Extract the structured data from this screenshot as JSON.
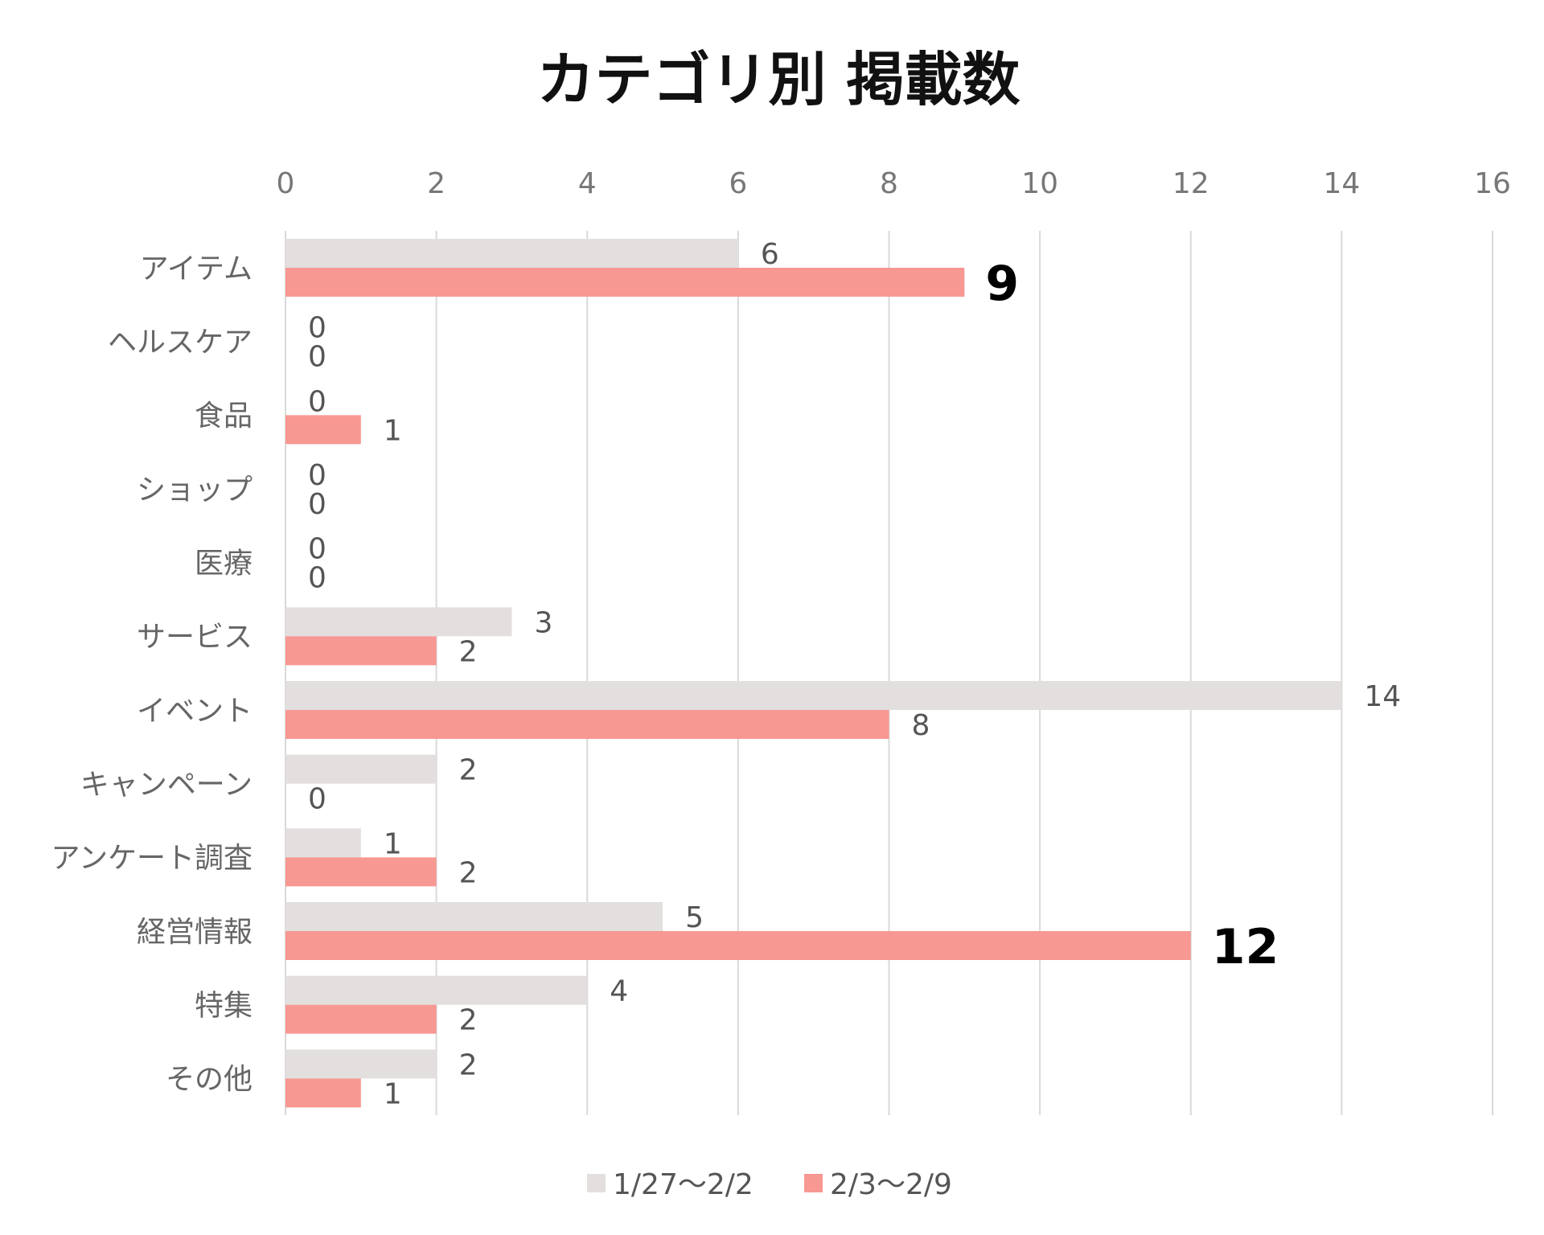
{
  "chart_data": {
    "type": "bar",
    "orientation": "horizontal",
    "title": "カテゴリ別 掲載数",
    "categories": [
      "アイテム",
      "ヘルスケア",
      "食品",
      "ショップ",
      "医療",
      "サービス",
      "イベント",
      "キャンペーン",
      "アンケート調査",
      "経営情報",
      "特集",
      "その他"
    ],
    "series": [
      {
        "name": "1/27〜2/2",
        "color": "#e2dfde",
        "values": [
          6,
          0,
          0,
          0,
          0,
          3,
          14,
          2,
          1,
          5,
          4,
          2
        ]
      },
      {
        "name": "2/3〜2/9",
        "color": "#f79893",
        "values": [
          9,
          0,
          1,
          0,
          0,
          2,
          8,
          0,
          2,
          12,
          2,
          1
        ]
      }
    ],
    "highlighted_labels": [
      {
        "series": 1,
        "category": "アイテム"
      },
      {
        "series": 1,
        "category": "経営情報"
      }
    ],
    "xlim": [
      0,
      16
    ],
    "xticks": [
      0,
      2,
      4,
      6,
      8,
      10,
      12,
      14,
      16
    ],
    "xaxis_position": "top",
    "grid": true,
    "legend": "bottom",
    "xlabel": "",
    "ylabel": ""
  }
}
